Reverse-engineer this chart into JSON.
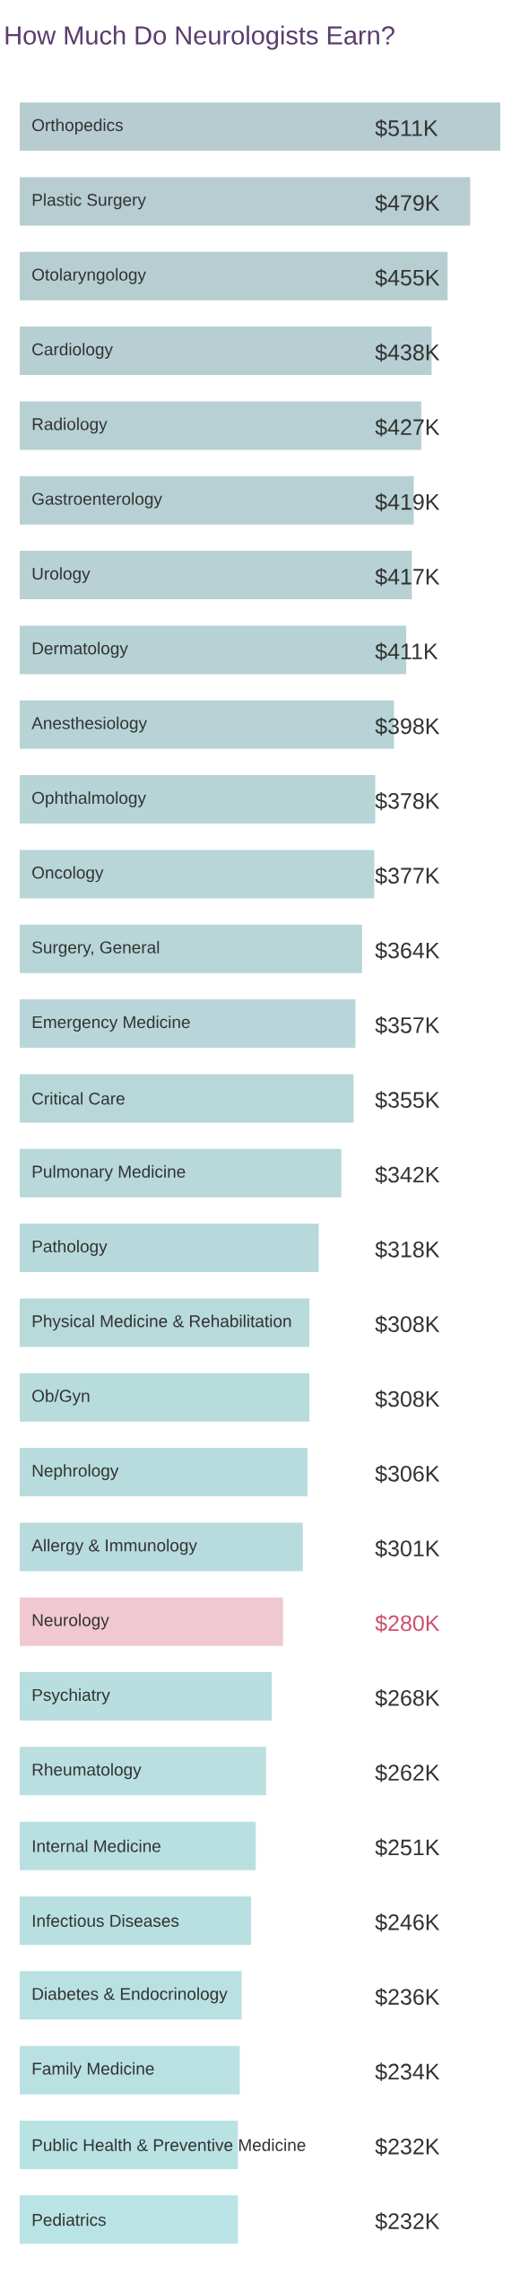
{
  "chart_data": {
    "type": "bar",
    "orientation": "horizontal",
    "title": "How Much Do Neurologists Earn?",
    "categories": [
      "Orthopedics",
      "Plastic Surgery",
      "Otolaryngology",
      "Cardiology",
      "Radiology",
      "Gastroenterology",
      "Urology",
      "Dermatology",
      "Anesthesiology",
      "Ophthalmology",
      "Oncology",
      "Surgery, General",
      "Emergency Medicine",
      "Critical Care",
      "Pulmonary Medicine",
      "Pathology",
      "Physical Medicine & Rehabilitation",
      "Ob/Gyn",
      "Nephrology",
      "Allergy & Immunology",
      "Neurology",
      "Psychiatry",
      "Rheumatology",
      "Internal Medicine",
      "Infectious Diseases",
      "Diabetes & Endocrinology",
      "Family Medicine",
      "Public Health & Preventive Medicine",
      "Pediatrics"
    ],
    "values": [
      511,
      479,
      455,
      438,
      427,
      419,
      417,
      411,
      398,
      378,
      377,
      364,
      357,
      355,
      342,
      318,
      308,
      308,
      306,
      301,
      280,
      268,
      262,
      251,
      246,
      236,
      234,
      232,
      232
    ],
    "value_labels": [
      "$511K",
      "$479K",
      "$455K",
      "$438K",
      "$427K",
      "$419K",
      "$417K",
      "$411K",
      "$398K",
      "$378K",
      "$377K",
      "$364K",
      "$357K",
      "$355K",
      "$342K",
      "$318K",
      "$308K",
      "$308K",
      "$306K",
      "$301K",
      "$280K",
      "$268K",
      "$262K",
      "$251K",
      "$246K",
      "$236K",
      "$234K",
      "$232K",
      "$232K"
    ],
    "colors": [
      "#b7ccd0",
      "#b7cdd1",
      "#b7ced1",
      "#b7cfd2",
      "#b7d0d3",
      "#b7d0d4",
      "#b7d1d4",
      "#b7d2d5",
      "#b7d3d6",
      "#b7d4d6",
      "#b8d5d7",
      "#b8d6d8",
      "#b8d6d9",
      "#b8d7d9",
      "#b8d8da",
      "#b8d9db",
      "#b8dadb",
      "#b8dbdc",
      "#b8dcdd",
      "#b8dcde",
      "#efc8d2",
      "#b8dedf",
      "#b9dfe0",
      "#b9e0e0",
      "#b9e0e1",
      "#b9e1e2",
      "#b9e1e2",
      "#b9e2e3",
      "#b9e3e4"
    ]
  }
}
